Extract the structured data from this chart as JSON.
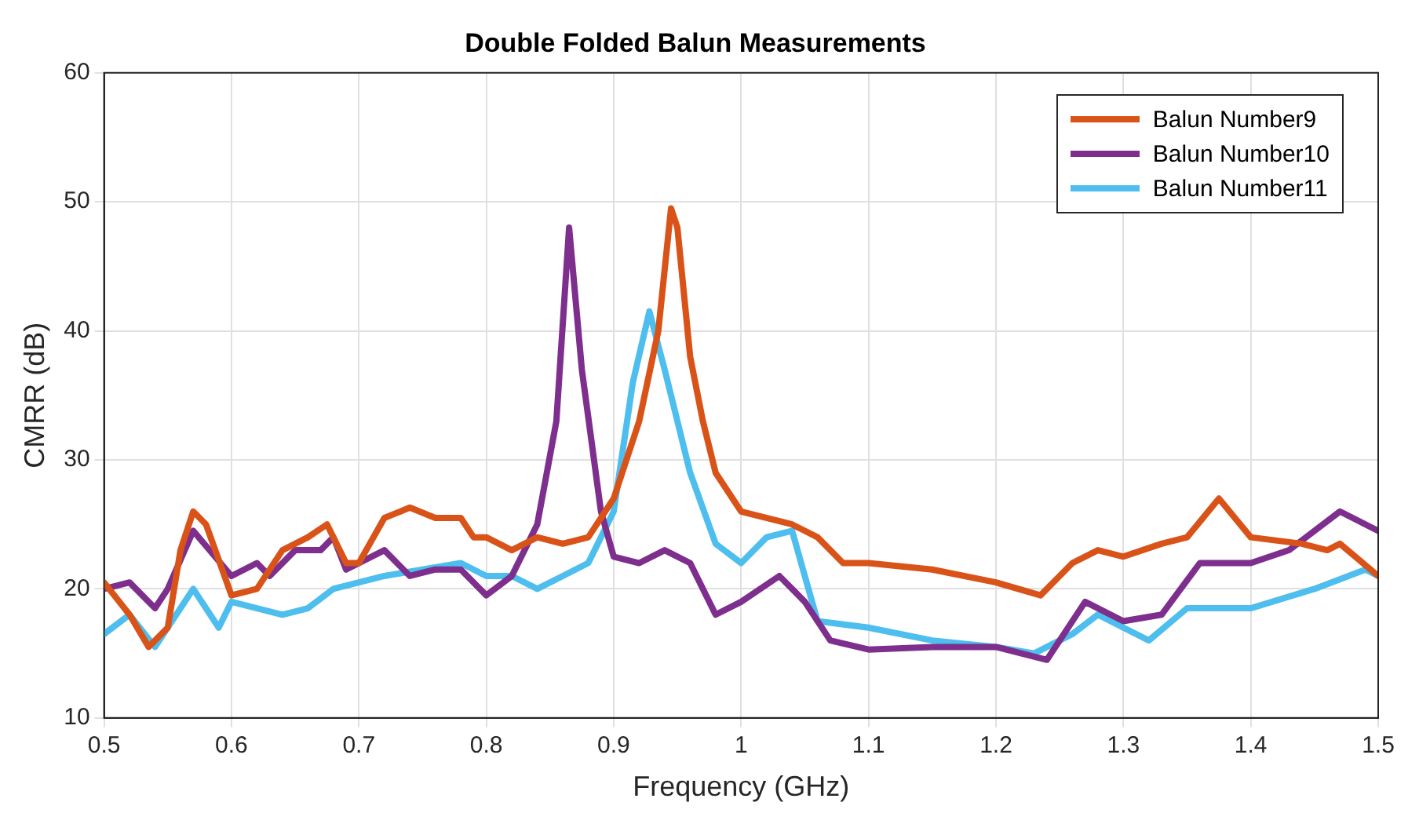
{
  "chart_data": {
    "type": "line",
    "title": "Double Folded Balun Measurements",
    "xlabel": "Frequency (GHz)",
    "ylabel": "CMRR (dB)",
    "xlim": [
      0.5,
      1.5
    ],
    "xticks": [
      0.5,
      0.6,
      0.7,
      0.8,
      0.9,
      1,
      1.1,
      1.2,
      1.3,
      1.4,
      1.5
    ],
    "ylim": [
      10,
      60
    ],
    "yticks": [
      10,
      20,
      30,
      40,
      50,
      60
    ],
    "grid": true,
    "legend": "top right",
    "marker": "none",
    "line_style": "solid",
    "series": [
      {
        "name": "Balun Number9",
        "color": "#d95319",
        "x": [
          0.5,
          0.52,
          0.535,
          0.55,
          0.56,
          0.57,
          0.58,
          0.6,
          0.62,
          0.64,
          0.66,
          0.675,
          0.69,
          0.7,
          0.72,
          0.74,
          0.76,
          0.78,
          0.79,
          0.8,
          0.82,
          0.84,
          0.86,
          0.88,
          0.9,
          0.92,
          0.935,
          0.945,
          0.95,
          0.96,
          0.97,
          0.98,
          1.0,
          1.04,
          1.06,
          1.08,
          1.1,
          1.15,
          1.2,
          1.235,
          1.26,
          1.28,
          1.3,
          1.33,
          1.35,
          1.375,
          1.4,
          1.44,
          1.46,
          1.47,
          1.5
        ],
        "values": [
          20.5,
          18,
          15.5,
          17,
          23,
          26,
          25,
          19.5,
          20,
          23,
          24,
          25,
          22,
          22,
          25.5,
          26.3,
          25.5,
          25.5,
          24,
          24,
          23,
          24,
          23.5,
          24,
          27,
          33,
          40,
          49.5,
          48,
          38,
          33,
          29,
          26,
          25,
          24,
          22,
          22,
          21.5,
          20.5,
          19.5,
          22,
          23,
          22.5,
          23.5,
          24,
          27,
          24,
          23.5,
          23,
          23.5,
          21
        ]
      },
      {
        "name": "Balun Number10",
        "color": "#7e2f8e",
        "x": [
          0.5,
          0.52,
          0.54,
          0.55,
          0.57,
          0.6,
          0.62,
          0.63,
          0.65,
          0.67,
          0.68,
          0.69,
          0.72,
          0.74,
          0.76,
          0.78,
          0.8,
          0.82,
          0.84,
          0.855,
          0.865,
          0.875,
          0.89,
          0.9,
          0.92,
          0.94,
          0.96,
          0.98,
          1.0,
          1.03,
          1.05,
          1.07,
          1.1,
          1.15,
          1.2,
          1.24,
          1.27,
          1.3,
          1.33,
          1.36,
          1.4,
          1.43,
          1.47,
          1.5
        ],
        "values": [
          20,
          20.5,
          18.5,
          20,
          24.5,
          21,
          22,
          21,
          23,
          23,
          24,
          21.5,
          23,
          21,
          21.5,
          21.5,
          19.5,
          21,
          25,
          33,
          48,
          37,
          26,
          22.5,
          22,
          23,
          22,
          18,
          19,
          21,
          19,
          16,
          15.3,
          15.5,
          15.5,
          14.5,
          19,
          17.5,
          18,
          22,
          22,
          23,
          26,
          24.5
        ]
      },
      {
        "name": "Balun Number11",
        "color": "#4dbeee",
        "x": [
          0.5,
          0.52,
          0.54,
          0.57,
          0.59,
          0.6,
          0.62,
          0.64,
          0.66,
          0.68,
          0.7,
          0.72,
          0.75,
          0.78,
          0.8,
          0.82,
          0.84,
          0.86,
          0.88,
          0.9,
          0.915,
          0.928,
          0.94,
          0.96,
          0.98,
          1.0,
          1.02,
          1.04,
          1.06,
          1.1,
          1.15,
          1.2,
          1.23,
          1.26,
          1.28,
          1.3,
          1.32,
          1.35,
          1.4,
          1.45,
          1.49,
          1.5
        ],
        "values": [
          16.5,
          18,
          15.5,
          20,
          17,
          19,
          18.5,
          18,
          18.5,
          20,
          20.5,
          21,
          21.5,
          22,
          21,
          21,
          20,
          21,
          22,
          26,
          36,
          41.5,
          37,
          29,
          23.5,
          22,
          24,
          24.5,
          17.5,
          17,
          16,
          15.5,
          15,
          16.5,
          18,
          17,
          16,
          18.5,
          18.5,
          20,
          21.5,
          21
        ]
      }
    ]
  }
}
